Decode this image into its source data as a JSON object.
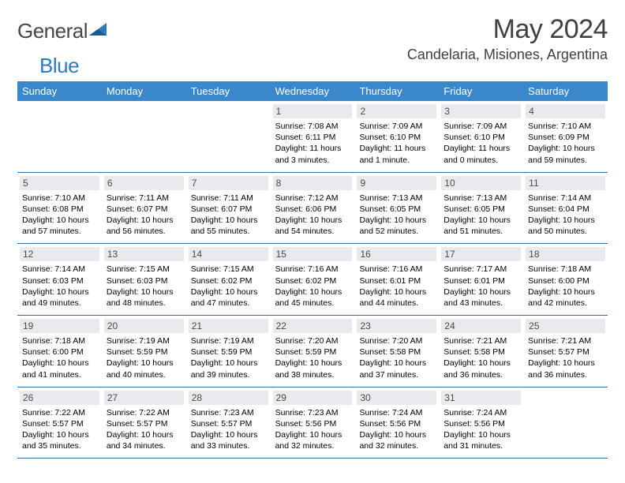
{
  "logo": {
    "text1": "General",
    "text2": "Blue"
  },
  "title": "May 2024",
  "location": "Candelaria, Misiones, Argentina",
  "colors": {
    "header_bg": "#3a87c9",
    "header_text": "#ffffff",
    "daynum_bg": "#e8eaed",
    "week_border": "#3a6a9a",
    "title_color": "#404040",
    "logo_gray": "#474747",
    "logo_blue": "#2b7bbf"
  },
  "day_labels": [
    "Sunday",
    "Monday",
    "Tuesday",
    "Wednesday",
    "Thursday",
    "Friday",
    "Saturday"
  ],
  "weeks": [
    [
      {
        "n": "",
        "sr": "",
        "ss": "",
        "dl": ""
      },
      {
        "n": "",
        "sr": "",
        "ss": "",
        "dl": ""
      },
      {
        "n": "",
        "sr": "",
        "ss": "",
        "dl": ""
      },
      {
        "n": "1",
        "sr": "Sunrise: 7:08 AM",
        "ss": "Sunset: 6:11 PM",
        "dl": "Daylight: 11 hours and 3 minutes."
      },
      {
        "n": "2",
        "sr": "Sunrise: 7:09 AM",
        "ss": "Sunset: 6:10 PM",
        "dl": "Daylight: 11 hours and 1 minute."
      },
      {
        "n": "3",
        "sr": "Sunrise: 7:09 AM",
        "ss": "Sunset: 6:10 PM",
        "dl": "Daylight: 11 hours and 0 minutes."
      },
      {
        "n": "4",
        "sr": "Sunrise: 7:10 AM",
        "ss": "Sunset: 6:09 PM",
        "dl": "Daylight: 10 hours and 59 minutes."
      }
    ],
    [
      {
        "n": "5",
        "sr": "Sunrise: 7:10 AM",
        "ss": "Sunset: 6:08 PM",
        "dl": "Daylight: 10 hours and 57 minutes."
      },
      {
        "n": "6",
        "sr": "Sunrise: 7:11 AM",
        "ss": "Sunset: 6:07 PM",
        "dl": "Daylight: 10 hours and 56 minutes."
      },
      {
        "n": "7",
        "sr": "Sunrise: 7:11 AM",
        "ss": "Sunset: 6:07 PM",
        "dl": "Daylight: 10 hours and 55 minutes."
      },
      {
        "n": "8",
        "sr": "Sunrise: 7:12 AM",
        "ss": "Sunset: 6:06 PM",
        "dl": "Daylight: 10 hours and 54 minutes."
      },
      {
        "n": "9",
        "sr": "Sunrise: 7:13 AM",
        "ss": "Sunset: 6:05 PM",
        "dl": "Daylight: 10 hours and 52 minutes."
      },
      {
        "n": "10",
        "sr": "Sunrise: 7:13 AM",
        "ss": "Sunset: 6:05 PM",
        "dl": "Daylight: 10 hours and 51 minutes."
      },
      {
        "n": "11",
        "sr": "Sunrise: 7:14 AM",
        "ss": "Sunset: 6:04 PM",
        "dl": "Daylight: 10 hours and 50 minutes."
      }
    ],
    [
      {
        "n": "12",
        "sr": "Sunrise: 7:14 AM",
        "ss": "Sunset: 6:03 PM",
        "dl": "Daylight: 10 hours and 49 minutes."
      },
      {
        "n": "13",
        "sr": "Sunrise: 7:15 AM",
        "ss": "Sunset: 6:03 PM",
        "dl": "Daylight: 10 hours and 48 minutes."
      },
      {
        "n": "14",
        "sr": "Sunrise: 7:15 AM",
        "ss": "Sunset: 6:02 PM",
        "dl": "Daylight: 10 hours and 47 minutes."
      },
      {
        "n": "15",
        "sr": "Sunrise: 7:16 AM",
        "ss": "Sunset: 6:02 PM",
        "dl": "Daylight: 10 hours and 45 minutes."
      },
      {
        "n": "16",
        "sr": "Sunrise: 7:16 AM",
        "ss": "Sunset: 6:01 PM",
        "dl": "Daylight: 10 hours and 44 minutes."
      },
      {
        "n": "17",
        "sr": "Sunrise: 7:17 AM",
        "ss": "Sunset: 6:01 PM",
        "dl": "Daylight: 10 hours and 43 minutes."
      },
      {
        "n": "18",
        "sr": "Sunrise: 7:18 AM",
        "ss": "Sunset: 6:00 PM",
        "dl": "Daylight: 10 hours and 42 minutes."
      }
    ],
    [
      {
        "n": "19",
        "sr": "Sunrise: 7:18 AM",
        "ss": "Sunset: 6:00 PM",
        "dl": "Daylight: 10 hours and 41 minutes."
      },
      {
        "n": "20",
        "sr": "Sunrise: 7:19 AM",
        "ss": "Sunset: 5:59 PM",
        "dl": "Daylight: 10 hours and 40 minutes."
      },
      {
        "n": "21",
        "sr": "Sunrise: 7:19 AM",
        "ss": "Sunset: 5:59 PM",
        "dl": "Daylight: 10 hours and 39 minutes."
      },
      {
        "n": "22",
        "sr": "Sunrise: 7:20 AM",
        "ss": "Sunset: 5:59 PM",
        "dl": "Daylight: 10 hours and 38 minutes."
      },
      {
        "n": "23",
        "sr": "Sunrise: 7:20 AM",
        "ss": "Sunset: 5:58 PM",
        "dl": "Daylight: 10 hours and 37 minutes."
      },
      {
        "n": "24",
        "sr": "Sunrise: 7:21 AM",
        "ss": "Sunset: 5:58 PM",
        "dl": "Daylight: 10 hours and 36 minutes."
      },
      {
        "n": "25",
        "sr": "Sunrise: 7:21 AM",
        "ss": "Sunset: 5:57 PM",
        "dl": "Daylight: 10 hours and 36 minutes."
      }
    ],
    [
      {
        "n": "26",
        "sr": "Sunrise: 7:22 AM",
        "ss": "Sunset: 5:57 PM",
        "dl": "Daylight: 10 hours and 35 minutes."
      },
      {
        "n": "27",
        "sr": "Sunrise: 7:22 AM",
        "ss": "Sunset: 5:57 PM",
        "dl": "Daylight: 10 hours and 34 minutes."
      },
      {
        "n": "28",
        "sr": "Sunrise: 7:23 AM",
        "ss": "Sunset: 5:57 PM",
        "dl": "Daylight: 10 hours and 33 minutes."
      },
      {
        "n": "29",
        "sr": "Sunrise: 7:23 AM",
        "ss": "Sunset: 5:56 PM",
        "dl": "Daylight: 10 hours and 32 minutes."
      },
      {
        "n": "30",
        "sr": "Sunrise: 7:24 AM",
        "ss": "Sunset: 5:56 PM",
        "dl": "Daylight: 10 hours and 32 minutes."
      },
      {
        "n": "31",
        "sr": "Sunrise: 7:24 AM",
        "ss": "Sunset: 5:56 PM",
        "dl": "Daylight: 10 hours and 31 minutes."
      },
      {
        "n": "",
        "sr": "",
        "ss": "",
        "dl": ""
      }
    ]
  ]
}
